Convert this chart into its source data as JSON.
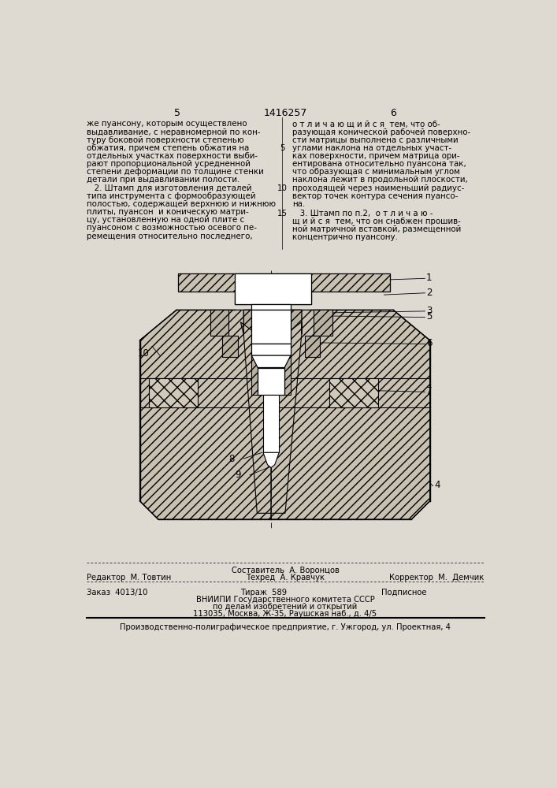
{
  "page_width": 7.07,
  "page_height": 10.0,
  "bg_color": "#dedad2",
  "header_page_left": "5",
  "header_patent": "1416257",
  "header_page_right": "6",
  "col_left_text": [
    "же пуансону, которым осуществлено",
    "выдавливание, с неравномерной по кон-",
    "туру боковой поверхности степенью",
    "обжатия, причем степень обжатия на",
    "отдельных участках поверхности выби-",
    "рают пропорциональной усредненной",
    "степени деформации по толщине стенки",
    "детали при выдавливании полости.",
    "   2. Штамп для изготовления деталей",
    "типа инструмента с формообразующей",
    "полостью, содержащей верхнюю и нижнюю",
    "плиты, пуансон  и коническую матри-",
    "цу, установленную на одной плите с",
    "пуансоном с возможностью осевого пе-",
    "ремещения относительно последнего,"
  ],
  "col_right_text_lines": [
    "о т л и ч а ю щ и й с я  тем, что об-",
    "разующая конической рабочей поверхно-",
    "сти матрицы выполнена с различными",
    "углами наклона на отдельных участ-",
    "ках поверхности, причем матрица ори-",
    "ентирована относительно пуансона так,",
    "что образующая с минимальным углом",
    "наклона лежит в продольной плоскости,",
    "проходящей через наименьший радиус-",
    "вектор точек контура сечения пуансо-",
    "на."
  ],
  "col_right_text2": [
    "   3. Штамп по п.2,  о т л и ч а ю -",
    "щ и й с я  тем, что он снабжен прошив-",
    "ной матричной вставкой, размещенной",
    "концентрично пуансону."
  ],
  "footer_left1": "Редактор  М. Товтин",
  "footer_center1_top": "Составитель  А. Воронцов",
  "footer_center1": "Техред  А. Кравчук",
  "footer_right1": "Корректор  М.  Демчик",
  "footer_left2": "Заказ  4013/10",
  "footer_center2": "Тираж  589",
  "footer_right2": "Подписное",
  "footer_org1": "ВНИИПИ Государственного комитета СССР",
  "footer_org2": "по делам изобретений и открытий",
  "footer_org3": "113035, Москва, Ж-35, Раушская наб., д. 4/5",
  "footer_printer": "Производственно-полиграфическое предприятие, г. Ужгород, ул. Проектная, 4"
}
